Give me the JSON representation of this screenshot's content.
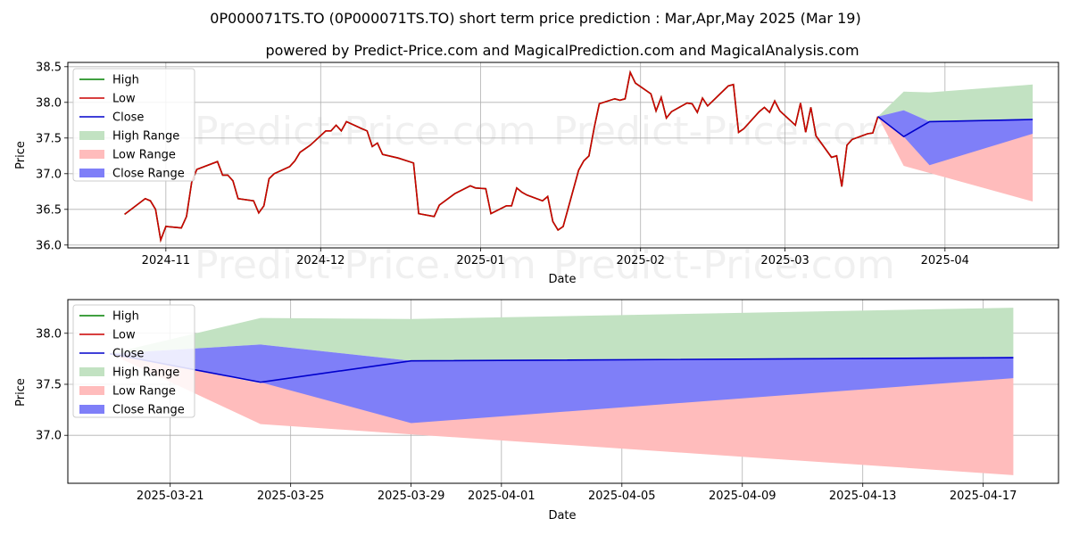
{
  "title_line1": "0P000071TS.TO (0P000071TS.TO) short term price prediction : Mar,Apr,May 2025 (Mar 19)",
  "title_line2": "powered by Predict-Price.com and MagicalPrediction.com and MagicalAnalysis.com",
  "watermark": "Predict-Price.com",
  "colors": {
    "high": "#008000",
    "low": "#cc0000",
    "close": "#0000cc",
    "high_range": "#c2e2c2",
    "low_range": "#ffbcbc",
    "close_range": "#7f7ff8",
    "grid": "#b0b0b0"
  },
  "legend": [
    "High",
    "Low",
    "Close",
    "High Range",
    "Low Range",
    "Close Range"
  ],
  "chart_data": [
    {
      "type": "line",
      "name": "history-and-forecast",
      "xlabel": "Date",
      "ylabel": "Price",
      "x_ticks": [
        {
          "label": "2024-11",
          "date": "2024-11-01"
        },
        {
          "label": "2024-12",
          "date": "2024-12-01"
        },
        {
          "label": "2025-01",
          "date": "2025-01-01"
        },
        {
          "label": "2025-02",
          "date": "2025-02-01"
        },
        {
          "label": "2025-03",
          "date": "2025-03-01"
        },
        {
          "label": "2025-04",
          "date": "2025-04-01"
        }
      ],
      "y_ticks": [
        "36.0",
        "36.5",
        "37.0",
        "37.5",
        "38.0",
        "38.5"
      ],
      "xlim": [
        "2024-10-13",
        "2025-04-23"
      ],
      "ylim": [
        35.96,
        38.56
      ],
      "grid": true,
      "legend_position": "top-left",
      "history": {
        "dates": [
          "2024-10-24",
          "2024-10-28",
          "2024-10-29",
          "2024-10-30",
          "2024-10-31",
          "2024-11-01",
          "2024-11-04",
          "2024-11-05",
          "2024-11-06",
          "2024-11-07",
          "2024-11-11",
          "2024-11-12",
          "2024-11-13",
          "2024-11-14",
          "2024-11-15",
          "2024-11-18",
          "2024-11-19",
          "2024-11-20",
          "2024-11-21",
          "2024-11-22",
          "2024-11-25",
          "2024-11-26",
          "2024-11-27",
          "2024-11-28",
          "2024-11-29",
          "2024-12-02",
          "2024-12-03",
          "2024-12-04",
          "2024-12-05",
          "2024-12-06",
          "2024-12-09",
          "2024-12-10",
          "2024-12-11",
          "2024-12-12",
          "2024-12-13",
          "2024-12-16",
          "2024-12-19",
          "2024-12-20",
          "2024-12-23",
          "2024-12-24",
          "2024-12-27",
          "2024-12-30",
          "2024-12-31",
          "2025-01-02",
          "2025-01-03",
          "2025-01-06",
          "2025-01-07",
          "2025-01-08",
          "2025-01-09",
          "2025-01-10",
          "2025-01-13",
          "2025-01-14",
          "2025-01-15",
          "2025-01-16",
          "2025-01-17",
          "2025-01-20",
          "2025-01-21",
          "2025-01-22",
          "2025-01-23",
          "2025-01-24",
          "2025-01-27",
          "2025-01-28",
          "2025-01-29",
          "2025-01-30",
          "2025-01-31",
          "2025-02-03",
          "2025-02-04",
          "2025-02-05",
          "2025-02-06",
          "2025-02-07",
          "2025-02-10",
          "2025-02-11",
          "2025-02-12",
          "2025-02-13",
          "2025-02-14",
          "2025-02-18",
          "2025-02-19",
          "2025-02-20",
          "2025-02-21",
          "2025-02-24",
          "2025-02-25",
          "2025-02-26",
          "2025-02-27",
          "2025-02-28",
          "2025-03-03",
          "2025-03-04",
          "2025-03-05",
          "2025-03-06",
          "2025-03-07",
          "2025-03-10",
          "2025-03-11",
          "2025-03-12",
          "2025-03-13",
          "2025-03-14",
          "2025-03-17",
          "2025-03-18",
          "2025-03-19"
        ],
        "low": [
          36.43,
          36.65,
          36.62,
          36.5,
          36.07,
          36.26,
          36.24,
          36.4,
          36.88,
          37.06,
          37.17,
          36.98,
          36.98,
          36.9,
          36.65,
          36.62,
          36.45,
          36.55,
          36.93,
          37.0,
          37.1,
          37.18,
          37.3,
          37.35,
          37.4,
          37.6,
          37.6,
          37.68,
          37.6,
          37.73,
          37.63,
          37.6,
          37.38,
          37.43,
          37.27,
          37.22,
          37.15,
          36.44,
          36.4,
          36.56,
          36.72,
          36.83,
          36.8,
          36.79,
          36.44,
          36.55,
          36.55,
          36.8,
          36.74,
          36.7,
          36.62,
          36.68,
          36.33,
          36.21,
          36.26,
          37.05,
          37.18,
          37.25,
          37.64,
          37.98,
          38.05,
          38.03,
          38.05,
          38.42,
          38.27,
          38.12,
          37.88,
          38.07,
          37.78,
          37.87,
          37.99,
          37.98,
          37.86,
          38.06,
          37.95,
          38.23,
          38.25,
          37.58,
          37.63,
          37.87,
          37.93,
          37.86,
          38.02,
          37.88,
          37.68,
          37.99,
          37.58,
          37.93,
          37.53,
          37.23,
          37.25,
          36.82,
          37.4,
          37.48,
          37.56,
          37.57,
          37.8
        ]
      },
      "forecast": {
        "dates": [
          "2025-03-19",
          "2025-03-24",
          "2025-03-29",
          "2025-04-18"
        ],
        "close": [
          37.8,
          37.52,
          37.73,
          37.76
        ],
        "high_range": {
          "upper": [
            37.8,
            38.15,
            38.14,
            38.25
          ],
          "lower": [
            37.8,
            37.89,
            37.73,
            37.77
          ]
        },
        "low_range": {
          "upper": [
            37.8,
            37.51,
            37.73,
            37.56
          ],
          "lower": [
            37.8,
            37.11,
            37.01,
            36.61
          ]
        },
        "close_range": {
          "upper": [
            37.8,
            37.89,
            37.73,
            37.77
          ],
          "lower": [
            37.8,
            37.52,
            37.12,
            37.56
          ]
        }
      }
    },
    {
      "type": "line",
      "name": "forecast-zoom",
      "xlabel": "Date",
      "ylabel": "Price",
      "x_ticks": [
        {
          "label": "2025-03-21",
          "date": "2025-03-21"
        },
        {
          "label": "2025-03-25",
          "date": "2025-03-25"
        },
        {
          "label": "2025-03-29",
          "date": "2025-03-29"
        },
        {
          "label": "2025-04-01",
          "date": "2025-04-01"
        },
        {
          "label": "2025-04-05",
          "date": "2025-04-05"
        },
        {
          "label": "2025-04-09",
          "date": "2025-04-09"
        },
        {
          "label": "2025-04-13",
          "date": "2025-04-13"
        },
        {
          "label": "2025-04-17",
          "date": "2025-04-17"
        }
      ],
      "y_ticks": [
        "37.0",
        "37.5",
        "38.0"
      ],
      "xlim": [
        "2025-03-17.6",
        "2025-04-19.5"
      ],
      "ylim": [
        36.53,
        38.33
      ],
      "grid": true,
      "legend_position": "top-left",
      "forecast": {
        "dates": [
          "2025-03-19",
          "2025-03-24",
          "2025-03-29",
          "2025-04-18"
        ],
        "close": [
          37.8,
          37.52,
          37.73,
          37.76
        ],
        "high_range": {
          "upper": [
            37.8,
            38.15,
            38.14,
            38.25
          ],
          "lower": [
            37.8,
            37.89,
            37.73,
            37.77
          ]
        },
        "low_range": {
          "upper": [
            37.8,
            37.51,
            37.73,
            37.56
          ],
          "lower": [
            37.8,
            37.11,
            37.01,
            36.61
          ]
        },
        "close_range": {
          "upper": [
            37.8,
            37.89,
            37.73,
            37.77
          ],
          "lower": [
            37.8,
            37.52,
            37.12,
            37.56
          ]
        }
      }
    }
  ]
}
